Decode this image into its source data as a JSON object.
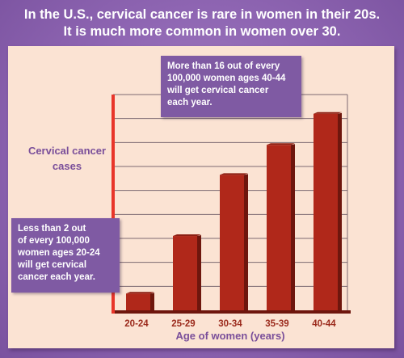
{
  "headline": {
    "line1": "In the U.S., cervical cancer is rare in women in their 20s.",
    "line2": "It is much more common in women over 30."
  },
  "callouts": {
    "right": {
      "line1": "More than 16 out of every",
      "line2": "100,000 women ages 40-44",
      "line3": "will get cervical cancer",
      "line4": "each year."
    },
    "left": {
      "line1": "Less than 2 out",
      "line2": "of every 100,000",
      "line3": "women ages 20-24",
      "line4": "will get cervical",
      "line5": "cancer each year."
    }
  },
  "colors": {
    "background": "#8e65b2",
    "panel": "#fbe3d3",
    "bar_front": "#b0281a",
    "bar_side": "#6e160d",
    "axis": "#e8352a",
    "label_text": "#7a4f9a",
    "tick_text": "#9b2a1c",
    "callout": "#7f5aa3"
  },
  "chart_data": {
    "type": "bar",
    "categories": [
      "20-24",
      "25-29",
      "30-34",
      "35-39",
      "40-44"
    ],
    "values": [
      1.4,
      6.2,
      11.3,
      13.8,
      16.4
    ],
    "ylim": [
      0,
      18
    ],
    "xlabel": "Age of women (years)",
    "ylabel_line1": "Cervical cancer",
    "ylabel_line2": "cases",
    "grid": true,
    "grid_step": 2
  }
}
